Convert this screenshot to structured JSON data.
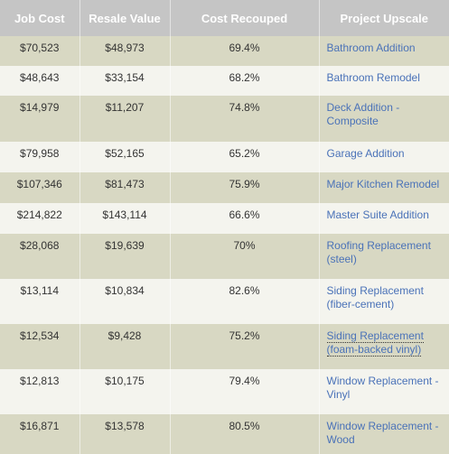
{
  "headers": [
    "Job Cost",
    "Resale Value",
    "Cost Recouped",
    "Project Upscale"
  ],
  "rows": [
    {
      "job_cost": "$70,523",
      "resale_value": "$48,973",
      "cost_recouped": "69.4%",
      "project": "Bathroom Addition"
    },
    {
      "job_cost": "$48,643",
      "resale_value": "$33,154",
      "cost_recouped": "68.2%",
      "project": "Bathroom Remodel"
    },
    {
      "job_cost": "$14,979",
      "resale_value": "$11,207",
      "cost_recouped": "74.8%",
      "project": "Deck Addition - Composite"
    },
    {
      "job_cost": "$79,958",
      "resale_value": "$52,165",
      "cost_recouped": "65.2%",
      "project": "Garage Addition"
    },
    {
      "job_cost": "$107,346",
      "resale_value": "$81,473",
      "cost_recouped": "75.9%",
      "project": "Major Kitchen Remodel"
    },
    {
      "job_cost": "$214,822",
      "resale_value": "$143,114",
      "cost_recouped": "66.6%",
      "project": "Master Suite Addition"
    },
    {
      "job_cost": "$28,068",
      "resale_value": "$19,639",
      "cost_recouped": "70%",
      "project": "Roofing Replacement (steel)"
    },
    {
      "job_cost": "$13,114",
      "resale_value": "$10,834",
      "cost_recouped": "82.6%",
      "project": "Siding Replacement (fiber-cement)"
    },
    {
      "job_cost": "$12,534",
      "resale_value": "$9,428",
      "cost_recouped": "75.2%",
      "project": "Siding Replacement (foam-backed vinyl)"
    },
    {
      "job_cost": "$12,813",
      "resale_value": "$10,175",
      "cost_recouped": "79.4%",
      "project": "Window Replacement - Vinyl"
    },
    {
      "job_cost": "$16,871",
      "resale_value": "$13,578",
      "cost_recouped": "80.5%",
      "project": "Window Replacement - Wood"
    }
  ]
}
